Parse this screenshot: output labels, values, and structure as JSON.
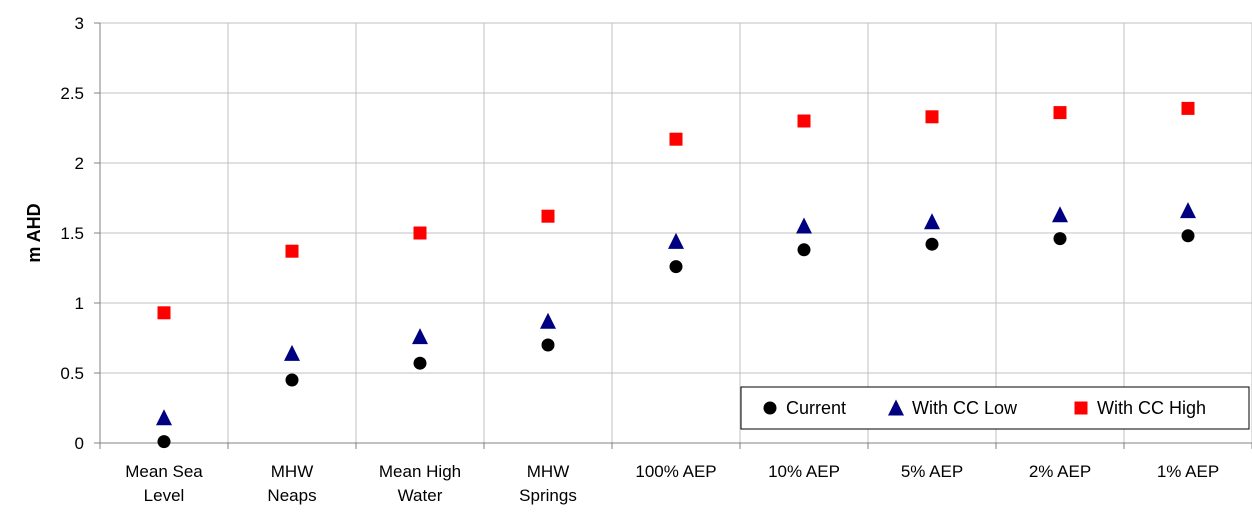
{
  "chart_data": {
    "type": "scatter",
    "title": "",
    "xlabel": "",
    "ylabel": "m AHD",
    "ylim": [
      0,
      3
    ],
    "yticks": [
      0,
      0.5,
      1,
      1.5,
      2,
      2.5,
      3
    ],
    "ytick_labels": [
      "0",
      "0.5",
      "1",
      "1.5",
      "2",
      "2.5",
      "3"
    ],
    "grid": true,
    "legend_position": "bottom-right",
    "categories": [
      [
        "Mean Sea",
        "Level"
      ],
      [
        "MHW",
        "Neaps"
      ],
      [
        "Mean High",
        "Water"
      ],
      [
        "MHW",
        "Springs"
      ],
      [
        "100% AEP"
      ],
      [
        "10% AEP"
      ],
      [
        "5% AEP"
      ],
      [
        "2% AEP"
      ],
      [
        "1% AEP"
      ]
    ],
    "series": [
      {
        "name": "Current",
        "marker": "circle",
        "color": "#000000",
        "values": [
          0.01,
          0.45,
          0.57,
          0.7,
          1.26,
          1.38,
          1.42,
          1.46,
          1.48
        ]
      },
      {
        "name": "With CC Low",
        "marker": "triangle",
        "color": "#000080",
        "values": [
          0.18,
          0.64,
          0.76,
          0.87,
          1.44,
          1.55,
          1.58,
          1.63,
          1.66
        ]
      },
      {
        "name": "With CC High",
        "marker": "square",
        "color": "#ff0000",
        "values": [
          0.93,
          1.37,
          1.5,
          1.62,
          2.17,
          2.3,
          2.33,
          2.36,
          2.39
        ]
      }
    ]
  }
}
